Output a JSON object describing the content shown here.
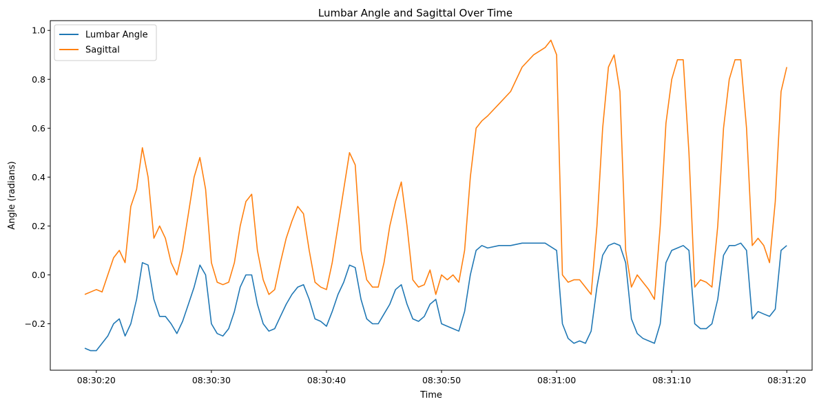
{
  "chart_data": {
    "type": "line",
    "title": "Lumbar Angle and Sagittal Over Time",
    "xlabel": "Time",
    "ylabel": "Angle (radians)",
    "x_unit": "seconds",
    "xlim": [
      "08:30:16",
      "08:31:22.2"
    ],
    "ylim": [
      -0.39,
      1.04
    ],
    "x_ticks": [
      "08:30:20",
      "08:30:30",
      "08:30:40",
      "08:30:50",
      "08:31:00",
      "08:31:10",
      "08:31:20"
    ],
    "y_ticks": [
      -0.2,
      0.0,
      0.2,
      0.4,
      0.6,
      0.8,
      1.0
    ],
    "y_tick_labels": [
      "−0.2",
      "0.0",
      "0.2",
      "0.4",
      "0.6",
      "0.8",
      "1.0"
    ],
    "legend": {
      "placement": "top-left"
    },
    "grid": false,
    "series": [
      {
        "name": "Lumbar Angle",
        "color": "#1f77b4",
        "points": [
          [
            "08:30:19.0",
            -0.3
          ],
          [
            "08:30:19.5",
            -0.31
          ],
          [
            "08:30:20.0",
            -0.31
          ],
          [
            "08:30:20.5",
            -0.28
          ],
          [
            "08:30:21.0",
            -0.25
          ],
          [
            "08:30:21.5",
            -0.2
          ],
          [
            "08:30:22.0",
            -0.18
          ],
          [
            "08:30:22.5",
            -0.25
          ],
          [
            "08:30:23.0",
            -0.2
          ],
          [
            "08:30:23.5",
            -0.1
          ],
          [
            "08:30:24.0",
            0.05
          ],
          [
            "08:30:24.5",
            0.04
          ],
          [
            "08:30:25.0",
            -0.1
          ],
          [
            "08:30:25.5",
            -0.17
          ],
          [
            "08:30:26.0",
            -0.17
          ],
          [
            "08:30:26.5",
            -0.2
          ],
          [
            "08:30:27.0",
            -0.24
          ],
          [
            "08:30:27.5",
            -0.19
          ],
          [
            "08:30:28.0",
            -0.12
          ],
          [
            "08:30:28.5",
            -0.05
          ],
          [
            "08:30:29.0",
            0.04
          ],
          [
            "08:30:29.5",
            0.0
          ],
          [
            "08:30:30.0",
            -0.2
          ],
          [
            "08:30:30.5",
            -0.24
          ],
          [
            "08:30:31.0",
            -0.25
          ],
          [
            "08:30:31.5",
            -0.22
          ],
          [
            "08:30:32.0",
            -0.15
          ],
          [
            "08:30:32.5",
            -0.05
          ],
          [
            "08:30:33.0",
            0.0
          ],
          [
            "08:30:33.5",
            0.0
          ],
          [
            "08:30:34.0",
            -0.12
          ],
          [
            "08:30:34.5",
            -0.2
          ],
          [
            "08:30:35.0",
            -0.23
          ],
          [
            "08:30:35.5",
            -0.22
          ],
          [
            "08:30:36.0",
            -0.17
          ],
          [
            "08:30:36.5",
            -0.12
          ],
          [
            "08:30:37.0",
            -0.08
          ],
          [
            "08:30:37.5",
            -0.05
          ],
          [
            "08:30:38.0",
            -0.04
          ],
          [
            "08:30:38.5",
            -0.1
          ],
          [
            "08:30:39.0",
            -0.18
          ],
          [
            "08:30:39.5",
            -0.19
          ],
          [
            "08:30:40.0",
            -0.21
          ],
          [
            "08:30:40.5",
            -0.15
          ],
          [
            "08:30:41.0",
            -0.08
          ],
          [
            "08:30:41.5",
            -0.03
          ],
          [
            "08:30:42.0",
            0.04
          ],
          [
            "08:30:42.5",
            0.03
          ],
          [
            "08:30:43.0",
            -0.1
          ],
          [
            "08:30:43.5",
            -0.18
          ],
          [
            "08:30:44.0",
            -0.2
          ],
          [
            "08:30:44.5",
            -0.2
          ],
          [
            "08:30:45.0",
            -0.16
          ],
          [
            "08:30:45.5",
            -0.12
          ],
          [
            "08:30:46.0",
            -0.06
          ],
          [
            "08:30:46.5",
            -0.04
          ],
          [
            "08:30:47.0",
            -0.12
          ],
          [
            "08:30:47.5",
            -0.18
          ],
          [
            "08:30:48.0",
            -0.19
          ],
          [
            "08:30:48.5",
            -0.17
          ],
          [
            "08:30:49.0",
            -0.12
          ],
          [
            "08:30:49.5",
            -0.1
          ],
          [
            "08:30:50.0",
            -0.2
          ],
          [
            "08:30:50.5",
            -0.21
          ],
          [
            "08:30:51.0",
            -0.22
          ],
          [
            "08:30:51.5",
            -0.23
          ],
          [
            "08:30:52.0",
            -0.15
          ],
          [
            "08:30:52.5",
            0.0
          ],
          [
            "08:30:53.0",
            0.1
          ],
          [
            "08:30:53.5",
            0.12
          ],
          [
            "08:30:54.0",
            0.11
          ],
          [
            "08:30:55.0",
            0.12
          ],
          [
            "08:30:56.0",
            0.12
          ],
          [
            "08:30:57.0",
            0.13
          ],
          [
            "08:30:58.0",
            0.13
          ],
          [
            "08:30:59.0",
            0.13
          ],
          [
            "08:31:00.0",
            0.1
          ],
          [
            "08:31:00.5",
            -0.2
          ],
          [
            "08:31:01.0",
            -0.26
          ],
          [
            "08:31:01.5",
            -0.28
          ],
          [
            "08:31:02.0",
            -0.27
          ],
          [
            "08:31:02.5",
            -0.28
          ],
          [
            "08:31:03.0",
            -0.23
          ],
          [
            "08:31:03.5",
            -0.05
          ],
          [
            "08:31:04.0",
            0.08
          ],
          [
            "08:31:04.5",
            0.12
          ],
          [
            "08:31:05.0",
            0.13
          ],
          [
            "08:31:05.5",
            0.12
          ],
          [
            "08:31:06.0",
            0.05
          ],
          [
            "08:31:06.5",
            -0.18
          ],
          [
            "08:31:07.0",
            -0.24
          ],
          [
            "08:31:07.5",
            -0.26
          ],
          [
            "08:31:08.0",
            -0.27
          ],
          [
            "08:31:08.5",
            -0.28
          ],
          [
            "08:31:09.0",
            -0.2
          ],
          [
            "08:31:09.5",
            0.05
          ],
          [
            "08:31:10.0",
            0.1
          ],
          [
            "08:31:10.5",
            0.11
          ],
          [
            "08:31:11.0",
            0.12
          ],
          [
            "08:31:11.5",
            0.1
          ],
          [
            "08:31:12.0",
            -0.2
          ],
          [
            "08:31:12.5",
            -0.22
          ],
          [
            "08:31:13.0",
            -0.22
          ],
          [
            "08:31:13.5",
            -0.2
          ],
          [
            "08:31:14.0",
            -0.1
          ],
          [
            "08:31:14.5",
            0.08
          ],
          [
            "08:31:15.0",
            0.12
          ],
          [
            "08:31:15.5",
            0.12
          ],
          [
            "08:31:16.0",
            0.13
          ],
          [
            "08:31:16.5",
            0.1
          ],
          [
            "08:31:17.0",
            -0.18
          ],
          [
            "08:31:17.5",
            -0.15
          ],
          [
            "08:31:18.0",
            -0.16
          ],
          [
            "08:31:18.5",
            -0.17
          ],
          [
            "08:31:19.0",
            -0.14
          ],
          [
            "08:31:19.5",
            0.1
          ],
          [
            "08:31:20.0",
            0.12
          ]
        ]
      },
      {
        "name": "Sagittal",
        "color": "#ff7f0e",
        "points": [
          [
            "08:30:19.0",
            -0.08
          ],
          [
            "08:30:19.5",
            -0.07
          ],
          [
            "08:30:20.0",
            -0.06
          ],
          [
            "08:30:20.5",
            -0.07
          ],
          [
            "08:30:21.0",
            0.0
          ],
          [
            "08:30:21.5",
            0.07
          ],
          [
            "08:30:22.0",
            0.1
          ],
          [
            "08:30:22.5",
            0.05
          ],
          [
            "08:30:23.0",
            0.28
          ],
          [
            "08:30:23.5",
            0.35
          ],
          [
            "08:30:24.0",
            0.52
          ],
          [
            "08:30:24.5",
            0.4
          ],
          [
            "08:30:25.0",
            0.15
          ],
          [
            "08:30:25.5",
            0.2
          ],
          [
            "08:30:26.0",
            0.15
          ],
          [
            "08:30:26.5",
            0.05
          ],
          [
            "08:30:27.0",
            0.0
          ],
          [
            "08:30:27.5",
            0.1
          ],
          [
            "08:30:28.0",
            0.25
          ],
          [
            "08:30:28.5",
            0.4
          ],
          [
            "08:30:29.0",
            0.48
          ],
          [
            "08:30:29.5",
            0.35
          ],
          [
            "08:30:30.0",
            0.05
          ],
          [
            "08:30:30.5",
            -0.03
          ],
          [
            "08:30:31.0",
            -0.04
          ],
          [
            "08:30:31.5",
            -0.03
          ],
          [
            "08:30:32.0",
            0.05
          ],
          [
            "08:30:32.5",
            0.2
          ],
          [
            "08:30:33.0",
            0.3
          ],
          [
            "08:30:33.5",
            0.33
          ],
          [
            "08:30:34.0",
            0.1
          ],
          [
            "08:30:34.5",
            -0.02
          ],
          [
            "08:30:35.0",
            -0.08
          ],
          [
            "08:30:35.5",
            -0.06
          ],
          [
            "08:30:36.0",
            0.05
          ],
          [
            "08:30:36.5",
            0.15
          ],
          [
            "08:30:37.0",
            0.22
          ],
          [
            "08:30:37.5",
            0.28
          ],
          [
            "08:30:38.0",
            0.25
          ],
          [
            "08:30:38.5",
            0.1
          ],
          [
            "08:30:39.0",
            -0.03
          ],
          [
            "08:30:39.5",
            -0.05
          ],
          [
            "08:30:40.0",
            -0.06
          ],
          [
            "08:30:40.5",
            0.05
          ],
          [
            "08:30:41.0",
            0.2
          ],
          [
            "08:30:41.5",
            0.35
          ],
          [
            "08:30:42.0",
            0.5
          ],
          [
            "08:30:42.5",
            0.45
          ],
          [
            "08:30:43.0",
            0.1
          ],
          [
            "08:30:43.5",
            -0.02
          ],
          [
            "08:30:44.0",
            -0.05
          ],
          [
            "08:30:44.5",
            -0.05
          ],
          [
            "08:30:45.0",
            0.05
          ],
          [
            "08:30:45.5",
            0.2
          ],
          [
            "08:30:46.0",
            0.3
          ],
          [
            "08:30:46.5",
            0.38
          ],
          [
            "08:30:47.0",
            0.2
          ],
          [
            "08:30:47.5",
            -0.02
          ],
          [
            "08:30:48.0",
            -0.05
          ],
          [
            "08:30:48.5",
            -0.04
          ],
          [
            "08:30:49.0",
            0.02
          ],
          [
            "08:30:49.5",
            -0.08
          ],
          [
            "08:30:50.0",
            0.0
          ],
          [
            "08:30:50.5",
            -0.02
          ],
          [
            "08:30:51.0",
            0.0
          ],
          [
            "08:30:51.5",
            -0.03
          ],
          [
            "08:30:52.0",
            0.1
          ],
          [
            "08:30:52.5",
            0.4
          ],
          [
            "08:30:53.0",
            0.6
          ],
          [
            "08:30:53.5",
            0.63
          ],
          [
            "08:30:54.0",
            0.65
          ],
          [
            "08:30:55.0",
            0.7
          ],
          [
            "08:30:56.0",
            0.75
          ],
          [
            "08:30:57.0",
            0.85
          ],
          [
            "08:30:58.0",
            0.9
          ],
          [
            "08:30:59.0",
            0.93
          ],
          [
            "08:30:59.5",
            0.96
          ],
          [
            "08:31:00.0",
            0.9
          ],
          [
            "08:31:00.5",
            0.0
          ],
          [
            "08:31:01.0",
            -0.03
          ],
          [
            "08:31:01.5",
            -0.02
          ],
          [
            "08:31:02.0",
            -0.02
          ],
          [
            "08:31:02.5",
            -0.05
          ],
          [
            "08:31:03.0",
            -0.08
          ],
          [
            "08:31:03.5",
            0.2
          ],
          [
            "08:31:04.0",
            0.6
          ],
          [
            "08:31:04.5",
            0.85
          ],
          [
            "08:31:05.0",
            0.9
          ],
          [
            "08:31:05.5",
            0.75
          ],
          [
            "08:31:06.0",
            0.1
          ],
          [
            "08:31:06.5",
            -0.05
          ],
          [
            "08:31:07.0",
            0.0
          ],
          [
            "08:31:07.5",
            -0.03
          ],
          [
            "08:31:08.0",
            -0.06
          ],
          [
            "08:31:08.5",
            -0.1
          ],
          [
            "08:31:09.0",
            0.2
          ],
          [
            "08:31:09.5",
            0.62
          ],
          [
            "08:31:10.0",
            0.8
          ],
          [
            "08:31:10.5",
            0.88
          ],
          [
            "08:31:11.0",
            0.88
          ],
          [
            "08:31:11.5",
            0.5
          ],
          [
            "08:31:12.0",
            -0.05
          ],
          [
            "08:31:12.5",
            -0.02
          ],
          [
            "08:31:13.0",
            -0.03
          ],
          [
            "08:31:13.5",
            -0.05
          ],
          [
            "08:31:14.0",
            0.2
          ],
          [
            "08:31:14.5",
            0.6
          ],
          [
            "08:31:15.0",
            0.8
          ],
          [
            "08:31:15.5",
            0.88
          ],
          [
            "08:31:16.0",
            0.88
          ],
          [
            "08:31:16.5",
            0.6
          ],
          [
            "08:31:17.0",
            0.12
          ],
          [
            "08:31:17.5",
            0.15
          ],
          [
            "08:31:18.0",
            0.12
          ],
          [
            "08:31:18.5",
            0.05
          ],
          [
            "08:31:19.0",
            0.3
          ],
          [
            "08:31:19.5",
            0.75
          ],
          [
            "08:31:20.0",
            0.85
          ]
        ]
      }
    ]
  }
}
